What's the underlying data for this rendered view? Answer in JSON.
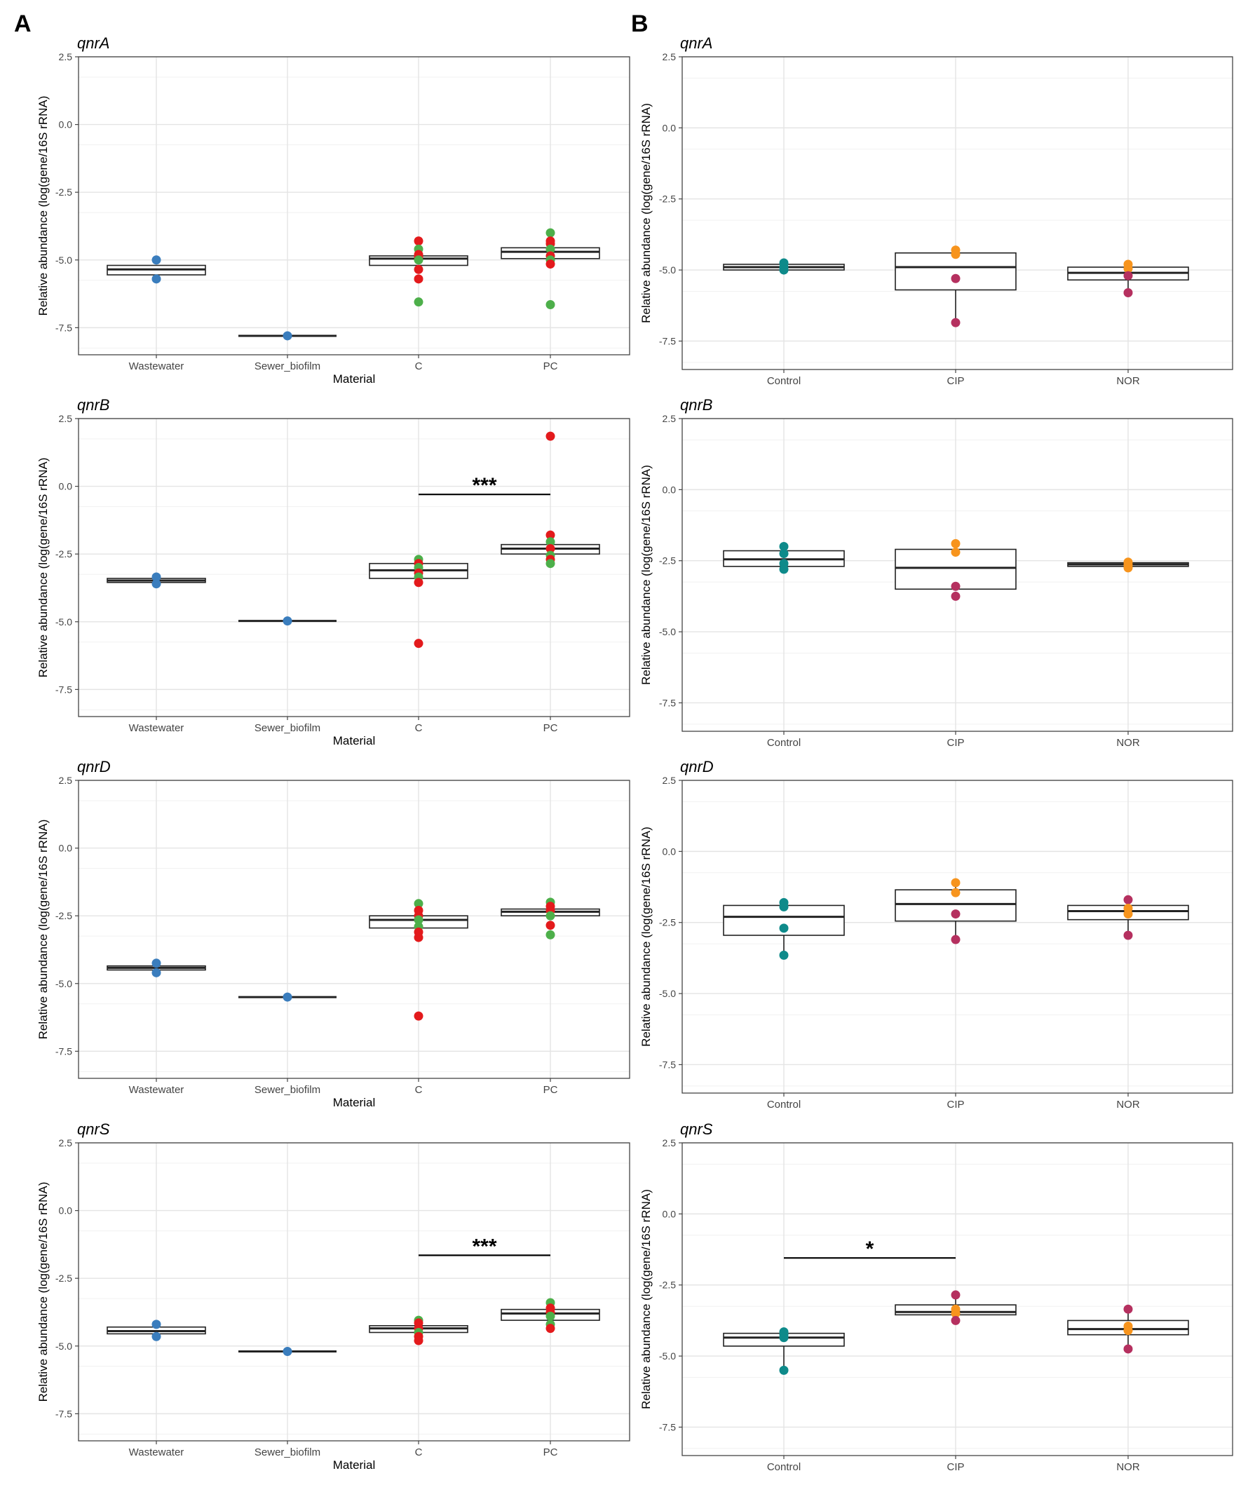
{
  "figure": {
    "panel_labels": [
      "A",
      "B"
    ]
  },
  "colors": {
    "wastewater": "#3a7dbd",
    "pc_green": "#4daf4a",
    "red": "#e31a1c",
    "control": "#0e8a8a",
    "orange": "#f7941d",
    "magenta": "#b5305f",
    "box_stroke": "#222222",
    "grid_major": "#e4e4e4",
    "grid_minor": "#f1f1f1",
    "frame": "#444444"
  },
  "chart_data": [
    {
      "type": "box",
      "panel": "A",
      "title": "qnrA",
      "categories": [
        "Wastewater",
        "Sewer_biofilm",
        "C",
        "PC"
      ],
      "xlabel": "Material",
      "ylabel": "Relative abundance (log(gene/16S rRNA)",
      "yticks": [
        "2.5",
        "0.0",
        "-2.5",
        "-5.0",
        "-7.5"
      ],
      "ylim": [
        -8.5,
        2.5
      ],
      "boxes": [
        {
          "q1": -5.55,
          "median": -5.35,
          "q3": -5.2,
          "wlo": -5.55,
          "whi": -5.2
        },
        {
          "q1": -7.8,
          "median": -7.8,
          "q3": -7.8,
          "wlo": -7.8,
          "whi": -7.8
        },
        {
          "q1": -5.2,
          "median": -4.95,
          "q3": -4.85,
          "wlo": -5.2,
          "whi": -4.85
        },
        {
          "q1": -4.95,
          "median": -4.7,
          "q3": -4.55,
          "wlo": -4.95,
          "whi": -4.55
        }
      ],
      "points": [
        {
          "x": 0,
          "y": -5.0,
          "color": "wastewater"
        },
        {
          "x": 0,
          "y": -5.7,
          "color": "wastewater"
        },
        {
          "x": 1,
          "y": -7.8,
          "color": "wastewater"
        },
        {
          "x": 2,
          "y": -4.3,
          "color": "red"
        },
        {
          "x": 2,
          "y": -4.6,
          "color": "pc_green"
        },
        {
          "x": 2,
          "y": -4.8,
          "color": "red"
        },
        {
          "x": 2,
          "y": -4.9,
          "color": "red"
        },
        {
          "x": 2,
          "y": -5.0,
          "color": "pc_green"
        },
        {
          "x": 2,
          "y": -5.35,
          "color": "red"
        },
        {
          "x": 2,
          "y": -5.7,
          "color": "red"
        },
        {
          "x": 2,
          "y": -6.55,
          "color": "pc_green"
        },
        {
          "x": 3,
          "y": -4.0,
          "color": "pc_green"
        },
        {
          "x": 3,
          "y": -4.3,
          "color": "red"
        },
        {
          "x": 3,
          "y": -4.4,
          "color": "red"
        },
        {
          "x": 3,
          "y": -4.6,
          "color": "pc_green"
        },
        {
          "x": 3,
          "y": -4.85,
          "color": "red"
        },
        {
          "x": 3,
          "y": -5.0,
          "color": "pc_green"
        },
        {
          "x": 3,
          "y": -5.15,
          "color": "red"
        },
        {
          "x": 3,
          "y": -6.65,
          "color": "pc_green"
        }
      ],
      "significance": []
    },
    {
      "type": "box",
      "panel": "B",
      "title": "qnrA",
      "categories": [
        "Control",
        "CIP",
        "NOR"
      ],
      "xlabel": "",
      "ylabel": "Relative abundance (log(gene/16S rRNA)",
      "yticks": [
        "2.5",
        "0.0",
        "-2.5",
        "-5.0",
        "-7.5"
      ],
      "ylim": [
        -8.5,
        2.5
      ],
      "boxes": [
        {
          "q1": -5.0,
          "median": -4.9,
          "q3": -4.8,
          "wlo": -5.0,
          "whi": -4.8
        },
        {
          "q1": -5.7,
          "median": -4.9,
          "q3": -4.4,
          "wlo": -6.85,
          "whi": -4.25
        },
        {
          "q1": -5.35,
          "median": -5.1,
          "q3": -4.9,
          "wlo": -5.8,
          "whi": -4.75
        }
      ],
      "points": [
        {
          "x": 0,
          "y": -4.75,
          "color": "control"
        },
        {
          "x": 0,
          "y": -4.9,
          "color": "control"
        },
        {
          "x": 0,
          "y": -5.0,
          "color": "control"
        },
        {
          "x": 1,
          "y": -4.3,
          "color": "orange"
        },
        {
          "x": 1,
          "y": -4.45,
          "color": "orange"
        },
        {
          "x": 1,
          "y": -5.3,
          "color": "magenta"
        },
        {
          "x": 1,
          "y": -6.85,
          "color": "magenta"
        },
        {
          "x": 2,
          "y": -4.8,
          "color": "orange"
        },
        {
          "x": 2,
          "y": -4.95,
          "color": "orange"
        },
        {
          "x": 2,
          "y": -5.2,
          "color": "magenta"
        },
        {
          "x": 2,
          "y": -5.8,
          "color": "magenta"
        }
      ],
      "significance": []
    },
    {
      "type": "box",
      "panel": "A",
      "title": "qnrB",
      "categories": [
        "Wastewater",
        "Sewer_biofilm",
        "C",
        "PC"
      ],
      "xlabel": "Material",
      "ylabel": "Relative abundance (log(gene/16S rRNA)",
      "yticks": [
        "2.5",
        "0.0",
        "-2.5",
        "-5.0",
        "-7.5"
      ],
      "ylim": [
        -8.5,
        2.5
      ],
      "boxes": [
        {
          "q1": -3.55,
          "median": -3.48,
          "q3": -3.4,
          "wlo": -3.55,
          "whi": -3.4
        },
        {
          "q1": -4.97,
          "median": -4.97,
          "q3": -4.97,
          "wlo": -4.97,
          "whi": -4.97
        },
        {
          "q1": -3.4,
          "median": -3.1,
          "q3": -2.85,
          "wlo": -3.4,
          "whi": -2.85
        },
        {
          "q1": -2.5,
          "median": -2.3,
          "q3": -2.15,
          "wlo": -2.5,
          "whi": -2.15
        }
      ],
      "points": [
        {
          "x": 0,
          "y": -3.35,
          "color": "wastewater"
        },
        {
          "x": 0,
          "y": -3.6,
          "color": "wastewater"
        },
        {
          "x": 1,
          "y": -4.97,
          "color": "wastewater"
        },
        {
          "x": 2,
          "y": -2.7,
          "color": "pc_green"
        },
        {
          "x": 2,
          "y": -2.85,
          "color": "red"
        },
        {
          "x": 2,
          "y": -3.0,
          "color": "pc_green"
        },
        {
          "x": 2,
          "y": -3.2,
          "color": "red"
        },
        {
          "x": 2,
          "y": -3.35,
          "color": "pc_green"
        },
        {
          "x": 2,
          "y": -3.55,
          "color": "red"
        },
        {
          "x": 2,
          "y": -5.8,
          "color": "red"
        },
        {
          "x": 3,
          "y": 1.85,
          "color": "red"
        },
        {
          "x": 3,
          "y": -1.8,
          "color": "red"
        },
        {
          "x": 3,
          "y": -2.05,
          "color": "pc_green"
        },
        {
          "x": 3,
          "y": -2.3,
          "color": "red"
        },
        {
          "x": 3,
          "y": -2.55,
          "color": "pc_green"
        },
        {
          "x": 3,
          "y": -2.7,
          "color": "red"
        },
        {
          "x": 3,
          "y": -2.85,
          "color": "pc_green"
        }
      ],
      "significance": [
        {
          "from": 2,
          "to": 3,
          "y": -0.3,
          "label": "***"
        }
      ]
    },
    {
      "type": "box",
      "panel": "B",
      "title": "qnrB",
      "categories": [
        "Control",
        "CIP",
        "NOR"
      ],
      "xlabel": "",
      "ylabel": "Relative abundance (log(gene/16S rRNA)",
      "yticks": [
        "2.5",
        "0.0",
        "-2.5",
        "-5.0",
        "-7.5"
      ],
      "ylim": [
        -8.5,
        2.5
      ],
      "boxes": [
        {
          "q1": -2.7,
          "median": -2.45,
          "q3": -2.15,
          "wlo": -2.7,
          "whi": -2.15
        },
        {
          "q1": -3.5,
          "median": -2.75,
          "q3": -2.1,
          "wlo": -3.5,
          "whi": -2.1
        },
        {
          "q1": -2.7,
          "median": -2.63,
          "q3": -2.57,
          "wlo": -2.7,
          "whi": -2.57
        }
      ],
      "points": [
        {
          "x": 0,
          "y": -2.0,
          "color": "control"
        },
        {
          "x": 0,
          "y": -2.25,
          "color": "control"
        },
        {
          "x": 0,
          "y": -2.6,
          "color": "control"
        },
        {
          "x": 0,
          "y": -2.8,
          "color": "control"
        },
        {
          "x": 1,
          "y": -1.9,
          "color": "orange"
        },
        {
          "x": 1,
          "y": -2.2,
          "color": "orange"
        },
        {
          "x": 1,
          "y": -3.4,
          "color": "magenta"
        },
        {
          "x": 1,
          "y": -3.75,
          "color": "magenta"
        },
        {
          "x": 2,
          "y": -2.55,
          "color": "orange"
        },
        {
          "x": 2,
          "y": -2.65,
          "color": "orange"
        },
        {
          "x": 2,
          "y": -2.75,
          "color": "orange"
        }
      ],
      "significance": []
    },
    {
      "type": "box",
      "panel": "A",
      "title": "qnrD",
      "categories": [
        "Wastewater",
        "Sewer_biofilm",
        "C",
        "PC"
      ],
      "xlabel": "Material",
      "ylabel": "Relative abundance (log(gene/16S rRNA)",
      "yticks": [
        "2.5",
        "0.0",
        "-2.5",
        "-5.0",
        "-7.5"
      ],
      "ylim": [
        -8.5,
        2.5
      ],
      "boxes": [
        {
          "q1": -4.5,
          "median": -4.42,
          "q3": -4.35,
          "wlo": -4.5,
          "whi": -4.35
        },
        {
          "q1": -5.5,
          "median": -5.5,
          "q3": -5.5,
          "wlo": -5.5,
          "whi": -5.5
        },
        {
          "q1": -2.95,
          "median": -2.65,
          "q3": -2.5,
          "wlo": -2.95,
          "whi": -2.5
        },
        {
          "q1": -2.5,
          "median": -2.35,
          "q3": -2.25,
          "wlo": -2.5,
          "whi": -2.25
        }
      ],
      "points": [
        {
          "x": 0,
          "y": -4.25,
          "color": "wastewater"
        },
        {
          "x": 0,
          "y": -4.6,
          "color": "wastewater"
        },
        {
          "x": 1,
          "y": -5.5,
          "color": "wastewater"
        },
        {
          "x": 2,
          "y": -2.05,
          "color": "pc_green"
        },
        {
          "x": 2,
          "y": -2.3,
          "color": "red"
        },
        {
          "x": 2,
          "y": -2.5,
          "color": "red"
        },
        {
          "x": 2,
          "y": -2.65,
          "color": "pc_green"
        },
        {
          "x": 2,
          "y": -2.9,
          "color": "pc_green"
        },
        {
          "x": 2,
          "y": -3.1,
          "color": "red"
        },
        {
          "x": 2,
          "y": -3.3,
          "color": "red"
        },
        {
          "x": 2,
          "y": -6.2,
          "color": "red"
        },
        {
          "x": 3,
          "y": -2.0,
          "color": "pc_green"
        },
        {
          "x": 3,
          "y": -2.15,
          "color": "red"
        },
        {
          "x": 3,
          "y": -2.3,
          "color": "red"
        },
        {
          "x": 3,
          "y": -2.5,
          "color": "pc_green"
        },
        {
          "x": 3,
          "y": -2.85,
          "color": "red"
        },
        {
          "x": 3,
          "y": -3.2,
          "color": "pc_green"
        }
      ],
      "significance": []
    },
    {
      "type": "box",
      "panel": "B",
      "title": "qnrD",
      "categories": [
        "Control",
        "CIP",
        "NOR"
      ],
      "xlabel": "",
      "ylabel": "Relative abundance (log(gene/16S rRNA)",
      "yticks": [
        "2.5",
        "0.0",
        "-2.5",
        "-5.0",
        "-7.5"
      ],
      "ylim": [
        -8.5,
        2.5
      ],
      "boxes": [
        {
          "q1": -2.95,
          "median": -2.3,
          "q3": -1.9,
          "wlo": -3.65,
          "whi": -1.8
        },
        {
          "q1": -2.45,
          "median": -1.85,
          "q3": -1.35,
          "wlo": -3.1,
          "whi": -1.1
        },
        {
          "q1": -2.4,
          "median": -2.1,
          "q3": -1.9,
          "wlo": -2.95,
          "whi": -1.7
        }
      ],
      "points": [
        {
          "x": 0,
          "y": -1.8,
          "color": "control"
        },
        {
          "x": 0,
          "y": -1.95,
          "color": "control"
        },
        {
          "x": 0,
          "y": -2.7,
          "color": "control"
        },
        {
          "x": 0,
          "y": -3.65,
          "color": "control"
        },
        {
          "x": 1,
          "y": -1.1,
          "color": "orange"
        },
        {
          "x": 1,
          "y": -1.45,
          "color": "orange"
        },
        {
          "x": 1,
          "y": -2.2,
          "color": "magenta"
        },
        {
          "x": 1,
          "y": -3.1,
          "color": "magenta"
        },
        {
          "x": 2,
          "y": -1.7,
          "color": "magenta"
        },
        {
          "x": 2,
          "y": -2.0,
          "color": "orange"
        },
        {
          "x": 2,
          "y": -2.2,
          "color": "orange"
        },
        {
          "x": 2,
          "y": -2.95,
          "color": "magenta"
        }
      ],
      "significance": []
    },
    {
      "type": "box",
      "panel": "A",
      "title": "qnrS",
      "categories": [
        "Wastewater",
        "Sewer_biofilm",
        "C",
        "PC"
      ],
      "xlabel": "Material",
      "ylabel": "Relative abundance (log(gene/16S rRNA)",
      "yticks": [
        "2.5",
        "0.0",
        "-2.5",
        "-5.0",
        "-7.5"
      ],
      "ylim": [
        -8.5,
        2.5
      ],
      "boxes": [
        {
          "q1": -4.55,
          "median": -4.45,
          "q3": -4.3,
          "wlo": -4.55,
          "whi": -4.3
        },
        {
          "q1": -5.2,
          "median": -5.2,
          "q3": -5.2,
          "wlo": -5.2,
          "whi": -5.2
        },
        {
          "q1": -4.5,
          "median": -4.35,
          "q3": -4.25,
          "wlo": -4.5,
          "whi": -4.25
        },
        {
          "q1": -4.05,
          "median": -3.8,
          "q3": -3.65,
          "wlo": -4.05,
          "whi": -3.65
        }
      ],
      "points": [
        {
          "x": 0,
          "y": -4.2,
          "color": "wastewater"
        },
        {
          "x": 0,
          "y": -4.65,
          "color": "wastewater"
        },
        {
          "x": 1,
          "y": -5.2,
          "color": "wastewater"
        },
        {
          "x": 2,
          "y": -4.05,
          "color": "pc_green"
        },
        {
          "x": 2,
          "y": -4.15,
          "color": "red"
        },
        {
          "x": 2,
          "y": -4.35,
          "color": "red"
        },
        {
          "x": 2,
          "y": -4.5,
          "color": "pc_green"
        },
        {
          "x": 2,
          "y": -4.65,
          "color": "red"
        },
        {
          "x": 2,
          "y": -4.8,
          "color": "red"
        },
        {
          "x": 3,
          "y": -3.4,
          "color": "pc_green"
        },
        {
          "x": 3,
          "y": -3.6,
          "color": "red"
        },
        {
          "x": 3,
          "y": -3.75,
          "color": "red"
        },
        {
          "x": 3,
          "y": -3.9,
          "color": "pc_green"
        },
        {
          "x": 3,
          "y": -4.2,
          "color": "pc_green"
        },
        {
          "x": 3,
          "y": -4.35,
          "color": "red"
        }
      ],
      "significance": [
        {
          "from": 2,
          "to": 3,
          "y": -1.65,
          "label": "***"
        }
      ]
    },
    {
      "type": "box",
      "panel": "B",
      "title": "qnrS",
      "categories": [
        "Control",
        "CIP",
        "NOR"
      ],
      "xlabel": "",
      "ylabel": "Relative abundance (log(gene/16S rRNA)",
      "yticks": [
        "2.5",
        "0.0",
        "-2.5",
        "-5.0",
        "-7.5"
      ],
      "ylim": [
        -8.5,
        2.5
      ],
      "boxes": [
        {
          "q1": -4.65,
          "median": -4.35,
          "q3": -4.2,
          "wlo": -5.5,
          "whi": -4.2
        },
        {
          "q1": -3.55,
          "median": -3.45,
          "q3": -3.2,
          "wlo": -3.75,
          "whi": -2.85
        },
        {
          "q1": -4.25,
          "median": -4.05,
          "q3": -3.75,
          "wlo": -4.75,
          "whi": -3.35
        }
      ],
      "points": [
        {
          "x": 0,
          "y": -4.15,
          "color": "control"
        },
        {
          "x": 0,
          "y": -4.25,
          "color": "control"
        },
        {
          "x": 0,
          "y": -4.35,
          "color": "control"
        },
        {
          "x": 0,
          "y": -5.5,
          "color": "control"
        },
        {
          "x": 1,
          "y": -2.85,
          "color": "magenta"
        },
        {
          "x": 1,
          "y": -3.35,
          "color": "orange"
        },
        {
          "x": 1,
          "y": -3.5,
          "color": "orange"
        },
        {
          "x": 1,
          "y": -3.75,
          "color": "magenta"
        },
        {
          "x": 2,
          "y": -3.35,
          "color": "magenta"
        },
        {
          "x": 2,
          "y": -3.95,
          "color": "orange"
        },
        {
          "x": 2,
          "y": -4.1,
          "color": "orange"
        },
        {
          "x": 2,
          "y": -4.75,
          "color": "magenta"
        }
      ],
      "significance": [
        {
          "from": 0,
          "to": 1,
          "y": -1.55,
          "label": "*"
        }
      ]
    }
  ]
}
